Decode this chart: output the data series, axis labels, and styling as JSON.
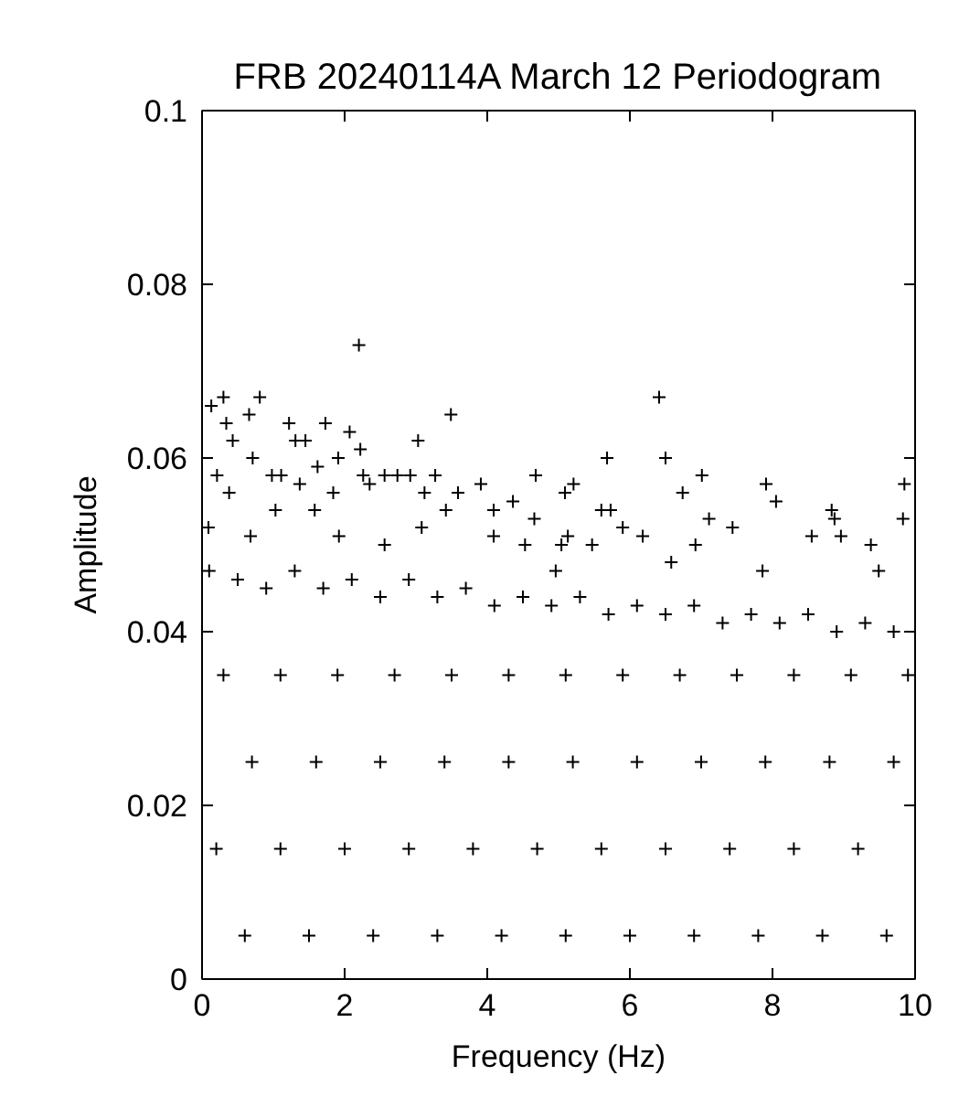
{
  "chart_data": {
    "type": "scatter",
    "title": "FRB 20240114A March 12 Periodogram",
    "xlabel": "Frequency (Hz)",
    "ylabel": "Amplitude",
    "xlim": [
      0,
      10
    ],
    "xticks": [
      0,
      2,
      4,
      6,
      8,
      10
    ],
    "ylim": [
      0,
      0.1
    ],
    "yticks": [
      0,
      0.02,
      0.04,
      0.06,
      0.08,
      0.1
    ],
    "grid": false,
    "marker": "cross",
    "series": [
      {
        "color": "#000000",
        "x": [
          2.2,
          0.3,
          0.81,
          0.13,
          3.49,
          0.66,
          0.34,
          1.73,
          1.22,
          2.07,
          3.03,
          1.31,
          1.45,
          0.43,
          2.22,
          1.91,
          0.71,
          1.62,
          4.68,
          5.09,
          3.91,
          3.27,
          2.92,
          2.74,
          2.56,
          0.98,
          4.36,
          3.59,
          6.41,
          5.68,
          6.5,
          7.01,
          7.91,
          5.21,
          9.85,
          6.74,
          8.05,
          8.83,
          5.6,
          8.87,
          9.83,
          5.13,
          6.18,
          8.96,
          1.37,
          1.11,
          2.26,
          2.35,
          3.12,
          4.66,
          4.09,
          3.42,
          1.84,
          1.58,
          1.03,
          0.38,
          0.21,
          5.04,
          4.53,
          4.09,
          3.08,
          2.56,
          1.92,
          0.68,
          0.09,
          5.47,
          6.92,
          7.44,
          8.55,
          9.38,
          5.9,
          7.11,
          5.73,
          4.96,
          6.58,
          7.86,
          9.49,
          0.1,
          0.5,
          0.9,
          1.3,
          1.7,
          2.1,
          2.5,
          2.9,
          3.3,
          3.7,
          4.1,
          4.5,
          4.9,
          5.3,
          5.7,
          6.1,
          6.5,
          6.9,
          7.3,
          7.7,
          8.1,
          8.5,
          8.9,
          9.3,
          9.7,
          0.3,
          1.1,
          1.9,
          2.7,
          3.5,
          4.3,
          5.1,
          5.9,
          6.7,
          7.5,
          8.3,
          9.1,
          9.9,
          0.7,
          1.6,
          2.5,
          3.4,
          4.3,
          5.2,
          6.1,
          7.0,
          7.9,
          8.8,
          9.7,
          0.2,
          1.1,
          2.0,
          2.9,
          3.8,
          4.7,
          5.6,
          6.5,
          7.4,
          8.3,
          9.2,
          0.6,
          1.5,
          2.4,
          3.3,
          4.2,
          5.1,
          6.0,
          6.9,
          7.8,
          8.7,
          9.6
        ],
        "values": [
          0.073,
          0.067,
          0.067,
          0.066,
          0.065,
          0.065,
          0.064,
          0.064,
          0.064,
          0.063,
          0.062,
          0.062,
          0.062,
          0.062,
          0.061,
          0.06,
          0.06,
          0.059,
          0.058,
          0.056,
          0.057,
          0.058,
          0.058,
          0.058,
          0.058,
          0.058,
          0.055,
          0.056,
          0.067,
          0.06,
          0.06,
          0.058,
          0.057,
          0.057,
          0.057,
          0.056,
          0.055,
          0.054,
          0.054,
          0.053,
          0.053,
          0.051,
          0.051,
          0.051,
          0.057,
          0.058,
          0.058,
          0.057,
          0.056,
          0.053,
          0.054,
          0.054,
          0.056,
          0.054,
          0.054,
          0.056,
          0.058,
          0.05,
          0.05,
          0.051,
          0.052,
          0.05,
          0.051,
          0.051,
          0.052,
          0.05,
          0.05,
          0.052,
          0.051,
          0.05,
          0.052,
          0.053,
          0.054,
          0.047,
          0.048,
          0.047,
          0.047,
          0.047,
          0.046,
          0.045,
          0.047,
          0.045,
          0.046,
          0.044,
          0.046,
          0.044,
          0.045,
          0.043,
          0.044,
          0.043,
          0.044,
          0.042,
          0.043,
          0.042,
          0.043,
          0.041,
          0.042,
          0.041,
          0.042,
          0.04,
          0.041,
          0.04,
          0.035,
          0.035,
          0.035,
          0.035,
          0.035,
          0.035,
          0.035,
          0.035,
          0.035,
          0.035,
          0.035,
          0.035,
          0.035,
          0.025,
          0.025,
          0.025,
          0.025,
          0.025,
          0.025,
          0.025,
          0.025,
          0.025,
          0.025,
          0.025,
          0.015,
          0.015,
          0.015,
          0.015,
          0.015,
          0.015,
          0.015,
          0.015,
          0.015,
          0.015,
          0.015,
          0.005,
          0.005,
          0.005,
          0.005,
          0.005,
          0.005,
          0.005,
          0.005,
          0.005,
          0.005,
          0.005
        ]
      }
    ]
  }
}
